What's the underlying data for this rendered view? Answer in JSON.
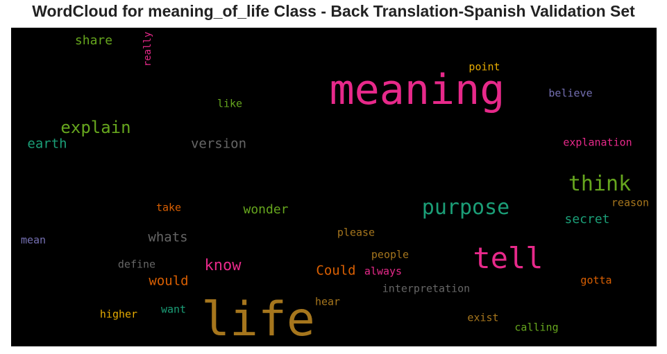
{
  "title": "WordCloud for meaning_of_life Class - Back Translation-Spanish Validation Set",
  "colors": {
    "background": "#000000",
    "pink": "#e7298a",
    "green": "#66a61e",
    "teal": "#1b9e77",
    "orange": "#d95f02",
    "gold": "#e6ab02",
    "purple": "#7570b3",
    "gray": "#666666",
    "brown": "#a6761d"
  },
  "words": {
    "meaning": "meaning",
    "life": "life",
    "tell": "tell",
    "purpose": "purpose",
    "think": "think",
    "explain": "explain",
    "know": "know",
    "share": "share",
    "really": "really",
    "point": "point",
    "believe": "believe",
    "like": "like",
    "earth": "earth",
    "version": "version",
    "explanation": "explanation",
    "take": "take",
    "wonder": "wonder",
    "reason": "reason",
    "secret": "secret",
    "whats": "whats",
    "please": "please",
    "mean": "mean",
    "define": "define",
    "people": "people",
    "could": "Could",
    "always": "always",
    "would": "would",
    "interpretation": "interpretation",
    "gotta": "gotta",
    "hear": "hear",
    "higher": "higher",
    "want": "want",
    "exist": "exist",
    "calling": "calling"
  }
}
